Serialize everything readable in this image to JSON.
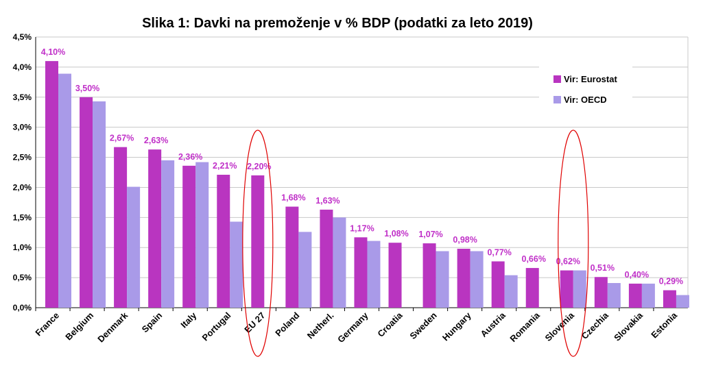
{
  "chart_data": {
    "type": "bar",
    "title": "Slika 1: Davki na premoženje v % BDP (podatki za leto 2019)",
    "xlabel": "",
    "ylabel": "",
    "categories": [
      "France",
      "Belgium",
      "Denmark",
      "Spain",
      "Italy",
      "Portugal",
      "EU 27",
      "Poland",
      "Netherl.",
      "Germany",
      "Croatia",
      "Sweden",
      "Hungary",
      "Austria",
      "Romania",
      "Slovenia",
      "Czechia",
      "Slovakia",
      "Estonia"
    ],
    "series": [
      {
        "name": "Vir: Eurostat",
        "color": "#b935c0",
        "values": [
          4.1,
          3.5,
          2.67,
          2.63,
          2.36,
          2.21,
          2.2,
          1.68,
          1.63,
          1.17,
          1.08,
          1.07,
          0.98,
          0.77,
          0.66,
          0.62,
          0.51,
          0.4,
          0.29
        ]
      },
      {
        "name": "Vir: OECD",
        "color": "#a99ae8",
        "values": [
          3.89,
          3.43,
          2.01,
          2.45,
          2.42,
          1.43,
          null,
          1.26,
          1.5,
          1.11,
          null,
          0.94,
          0.94,
          0.54,
          null,
          0.62,
          0.41,
          0.4,
          0.21
        ]
      }
    ],
    "data_labels": [
      "4,10%",
      "3,50%",
      "2,67%",
      "2,63%",
      "2,36%",
      "2,21%",
      "2,20%",
      "1,68%",
      "1,63%",
      "1,17%",
      "1,08%",
      "1,07%",
      "0,98%",
      "0,77%",
      "0,66%",
      "0,62%",
      "0,51%",
      "0,40%",
      "0,29%"
    ],
    "label_color": "#c030c8",
    "ylim": [
      0,
      4.5
    ],
    "yticks": [
      0,
      0.5,
      1,
      1.5,
      2,
      2.5,
      3,
      3.5,
      4,
      4.5
    ],
    "ytick_labels": [
      "0,0%",
      "0,5%",
      "1,0%",
      "1,5%",
      "2,0%",
      "2,5%",
      "3,0%",
      "3,5%",
      "4,0%",
      "4,5%"
    ],
    "grid": true,
    "legend": "top-right",
    "highlighted_categories": [
      "EU 27",
      "Slovenia"
    ],
    "highlight_color": "#e00000"
  }
}
